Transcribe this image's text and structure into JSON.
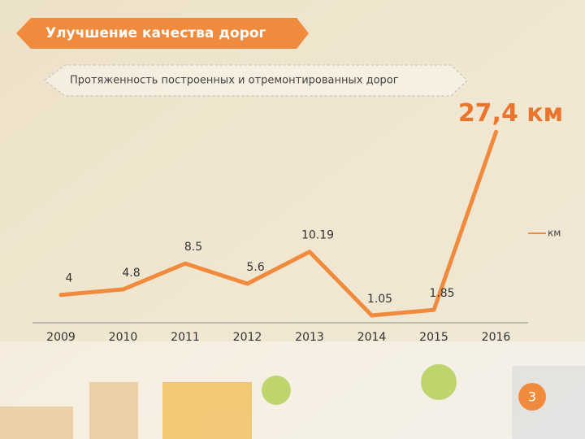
{
  "header": {
    "title": "Улучшение качества дорог",
    "subtitle": "Протяженность построенных и отремонтированных дорог"
  },
  "chart_data": {
    "type": "line",
    "categories": [
      "2009",
      "2010",
      "2011",
      "2012",
      "2013",
      "2014",
      "2015",
      "2016"
    ],
    "series": [
      {
        "name": "км",
        "color": "#f08a3c",
        "values": [
          4,
          4.8,
          8.5,
          5.6,
          10.19,
          1.05,
          1.85,
          27.4
        ],
        "value_labels": [
          "4",
          "4.8",
          "8.5",
          "5.6",
          "10.19",
          "1.05",
          "1.85",
          "27,4 км"
        ]
      }
    ],
    "ylim": [
      0,
      30
    ],
    "legend": "right"
  },
  "page_number": "3"
}
